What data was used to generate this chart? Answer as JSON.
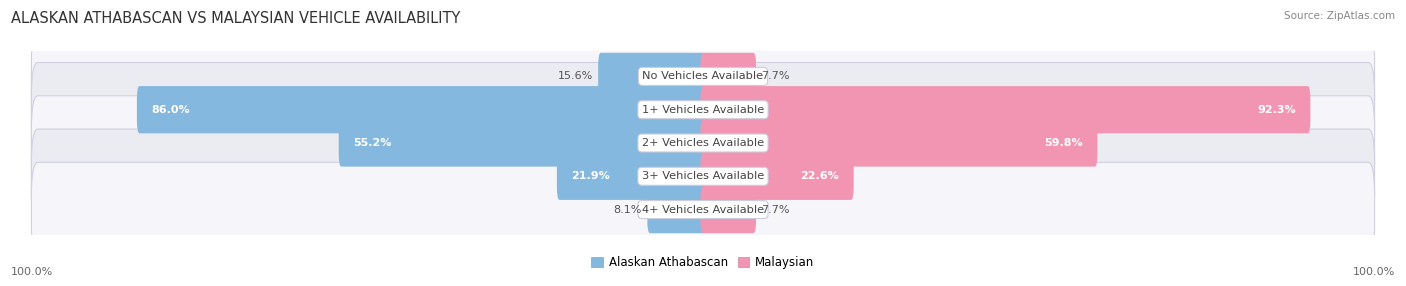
{
  "title": "ALASKAN ATHABASCAN VS MALAYSIAN VEHICLE AVAILABILITY",
  "source": "Source: ZipAtlas.com",
  "categories": [
    "No Vehicles Available",
    "1+ Vehicles Available",
    "2+ Vehicles Available",
    "3+ Vehicles Available",
    "4+ Vehicles Available"
  ],
  "alaskan_values": [
    15.6,
    86.0,
    55.2,
    21.9,
    8.1
  ],
  "malaysian_values": [
    7.7,
    92.3,
    59.8,
    22.6,
    7.7
  ],
  "alaskan_color": "#85b8de",
  "malaysian_color": "#f195b2",
  "bar_height": 0.62,
  "row_bg_color_odd": "#ebebf2",
  "row_bg_color_even": "#f5f5fa",
  "background_color": "#ffffff",
  "title_fontsize": 10.5,
  "label_fontsize": 8.2,
  "value_fontsize": 8.0,
  "legend_fontsize": 8.5,
  "axis_label_fontsize": 8.0,
  "max_value": 100.0,
  "center_label_color": "#444444",
  "row_border_color": "#d0d0e0",
  "label_box_color": "#ffffff",
  "label_box_border": "#ccccdd"
}
